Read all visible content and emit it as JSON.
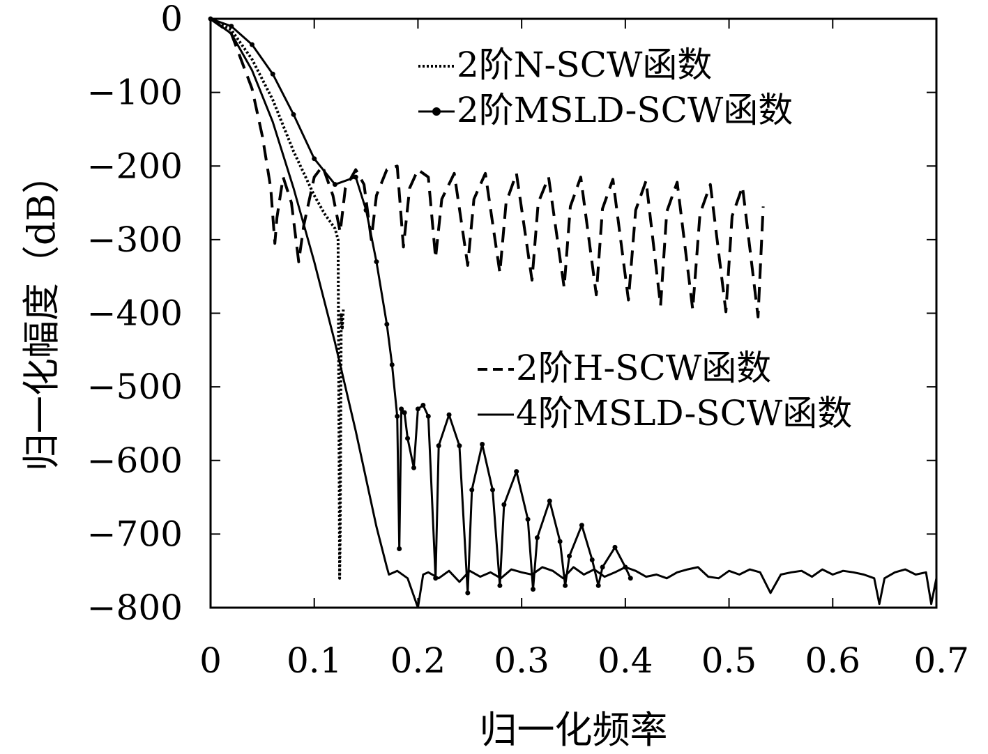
{
  "chart_data": {
    "type": "line",
    "title": "",
    "xlabel": "归一化频率",
    "ylabel": "归一化幅度（dB）",
    "xlim": [
      0,
      0.7
    ],
    "ylim": [
      -800,
      0
    ],
    "xticks": [
      0,
      0.1,
      0.2,
      0.3,
      0.4,
      0.5,
      0.6,
      0.7
    ],
    "xtick_labels": [
      "0",
      "0.1",
      "0.2",
      "0.3",
      "0.4",
      "0.5",
      "0.6",
      "0.7"
    ],
    "yticks": [
      0,
      -100,
      -200,
      -300,
      -400,
      -500,
      -600,
      -700,
      -800
    ],
    "ytick_labels": [
      "0",
      "−100",
      "−200",
      "−300",
      "−400",
      "−500",
      "−600",
      "−700",
      "−800"
    ],
    "grid": false,
    "legend": [
      {
        "label": "2阶N-SCW函数",
        "placement": "top-right",
        "style": "dotted"
      },
      {
        "label": "2阶MSLD-SCW函数",
        "placement": "top-right",
        "style": "line-dot"
      },
      {
        "label": "2阶H-SCW函数",
        "placement": "center-right",
        "style": "dashed"
      },
      {
        "label": "4阶MSLD-SCW函数",
        "placement": "center-right",
        "style": "solid"
      }
    ],
    "series": [
      {
        "name": "2阶H-SCW函数",
        "style": "dashed",
        "x": [
          0,
          0.02,
          0.04,
          0.05,
          0.058,
          0.062,
          0.064,
          0.07,
          0.078,
          0.085,
          0.09,
          0.1,
          0.108,
          0.118,
          0.125,
          0.13,
          0.14,
          0.148,
          0.155,
          0.16,
          0.17,
          0.18,
          0.186,
          0.192,
          0.2,
          0.21,
          0.217,
          0.223,
          0.235,
          0.248,
          0.254,
          0.265,
          0.279,
          0.285,
          0.295,
          0.31,
          0.316,
          0.326,
          0.341,
          0.347,
          0.357,
          0.372,
          0.378,
          0.388,
          0.403,
          0.41,
          0.42,
          0.434,
          0.44,
          0.45,
          0.465,
          0.472,
          0.482,
          0.497,
          0.503,
          0.513,
          0.528,
          0.533
        ],
        "y": [
          0,
          -20,
          -95,
          -160,
          -230,
          -305,
          -270,
          -215,
          -250,
          -330,
          -280,
          -215,
          -200,
          -240,
          -290,
          -230,
          -205,
          -225,
          -300,
          -240,
          -205,
          -200,
          -310,
          -230,
          -205,
          -215,
          -325,
          -245,
          -210,
          -335,
          -245,
          -210,
          -345,
          -250,
          -210,
          -355,
          -250,
          -215,
          -365,
          -255,
          -215,
          -375,
          -258,
          -218,
          -382,
          -260,
          -220,
          -390,
          -262,
          -222,
          -395,
          -265,
          -225,
          -398,
          -268,
          -228,
          -405,
          -255
        ]
      },
      {
        "name": "2阶N-SCW函数",
        "style": "dotted",
        "x": [
          0,
          0.02,
          0.04,
          0.06,
          0.08,
          0.1,
          0.11,
          0.12,
          0.123,
          0.124,
          0.1245,
          0.125,
          0.126,
          0.127,
          0.128
        ],
        "y": [
          0,
          -15,
          -55,
          -110,
          -180,
          -240,
          -265,
          -285,
          -300,
          -600,
          -760,
          -700,
          -400,
          -420,
          -395
        ]
      },
      {
        "name": "2阶MSLD-SCW函数",
        "style": "line-dot",
        "x": [
          0,
          0.02,
          0.04,
          0.06,
          0.08,
          0.1,
          0.12,
          0.14,
          0.15,
          0.16,
          0.17,
          0.175,
          0.18,
          0.182,
          0.184,
          0.187,
          0.19,
          0.196,
          0.2,
          0.205,
          0.21,
          0.217,
          0.22,
          0.23,
          0.24,
          0.248,
          0.252,
          0.262,
          0.272,
          0.279,
          0.283,
          0.295,
          0.306,
          0.311,
          0.315,
          0.327,
          0.337,
          0.342,
          0.346,
          0.358,
          0.368,
          0.374,
          0.378,
          0.39,
          0.4,
          0.405
        ],
        "y": [
          0,
          -10,
          -35,
          -75,
          -130,
          -190,
          -225,
          -215,
          -260,
          -330,
          -415,
          -470,
          -540,
          -720,
          -530,
          -535,
          -570,
          -610,
          -530,
          -525,
          -540,
          -760,
          -580,
          -538,
          -580,
          -780,
          -640,
          -578,
          -640,
          -770,
          -660,
          -615,
          -680,
          -775,
          -705,
          -655,
          -710,
          -770,
          -730,
          -688,
          -735,
          -770,
          -745,
          -718,
          -745,
          -760
        ]
      },
      {
        "name": "4阶MSLD-SCW函数",
        "style": "solid",
        "x": [
          0,
          0.02,
          0.04,
          0.06,
          0.08,
          0.1,
          0.12,
          0.14,
          0.16,
          0.17,
          0.172,
          0.18,
          0.19,
          0.2,
          0.205,
          0.21,
          0.22,
          0.23,
          0.24,
          0.25,
          0.26,
          0.27,
          0.28,
          0.29,
          0.3,
          0.31,
          0.32,
          0.33,
          0.34,
          0.35,
          0.36,
          0.37,
          0.38,
          0.39,
          0.4,
          0.41,
          0.42,
          0.43,
          0.44,
          0.45,
          0.46,
          0.47,
          0.48,
          0.49,
          0.5,
          0.51,
          0.52,
          0.53,
          0.54,
          0.55,
          0.56,
          0.57,
          0.58,
          0.59,
          0.6,
          0.61,
          0.62,
          0.63,
          0.64,
          0.645,
          0.65,
          0.66,
          0.67,
          0.68,
          0.69,
          0.695,
          0.7
        ],
        "y": [
          0,
          -20,
          -70,
          -140,
          -230,
          -330,
          -440,
          -560,
          -690,
          -745,
          -755,
          -750,
          -760,
          -800,
          -755,
          -752,
          -760,
          -750,
          -765,
          -750,
          -758,
          -752,
          -760,
          -748,
          -752,
          -755,
          -745,
          -750,
          -760,
          -745,
          -755,
          -748,
          -758,
          -752,
          -745,
          -750,
          -758,
          -755,
          -760,
          -752,
          -748,
          -745,
          -758,
          -760,
          -750,
          -755,
          -748,
          -752,
          -780,
          -755,
          -752,
          -750,
          -758,
          -748,
          -755,
          -750,
          -752,
          -755,
          -760,
          -795,
          -760,
          -752,
          -748,
          -755,
          -752,
          -795,
          -760
        ]
      }
    ]
  }
}
